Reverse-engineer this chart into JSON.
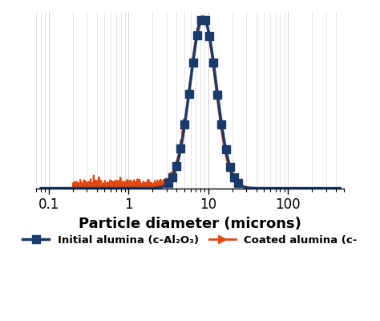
{
  "xlabel": "Particle diameter (microns)",
  "xlabel_fontsize": 13,
  "xlabel_fontweight": "bold",
  "xlim": [
    0.07,
    500
  ],
  "ylim": [
    0,
    14
  ],
  "grid_color": "#d0d0d8",
  "background_color": "#ffffff",
  "navy_color": "#1a3a6b",
  "orange_color": "#e8450a",
  "navy_linewidth": 2.5,
  "orange_linewidth": 1.5,
  "marker": "s",
  "marker_size": 7,
  "legend_navy_label": "Initial alumina (c-Al₂O₃)",
  "legend_orange_label": "Coated alumina (c-",
  "tick_fontsize": 12,
  "navy_peak_scale": 120.0,
  "navy_peak_mu_log": 2.3026,
  "navy_peak_sigma": 0.38,
  "orange_peak_scale": 115.0,
  "orange_peak_mu_log": 2.2726,
  "orange_peak_sigma": 0.37,
  "orange_fine_scale": 0.08,
  "orange_fine_mu_log": -0.2,
  "orange_fine_sigma": 0.55,
  "orange_noise_amplitude": 0.25,
  "baseline_y": 0.05,
  "navy_baseline_linewidth": 3.5,
  "marker_every_n": 18,
  "marker_threshold": 0.4
}
